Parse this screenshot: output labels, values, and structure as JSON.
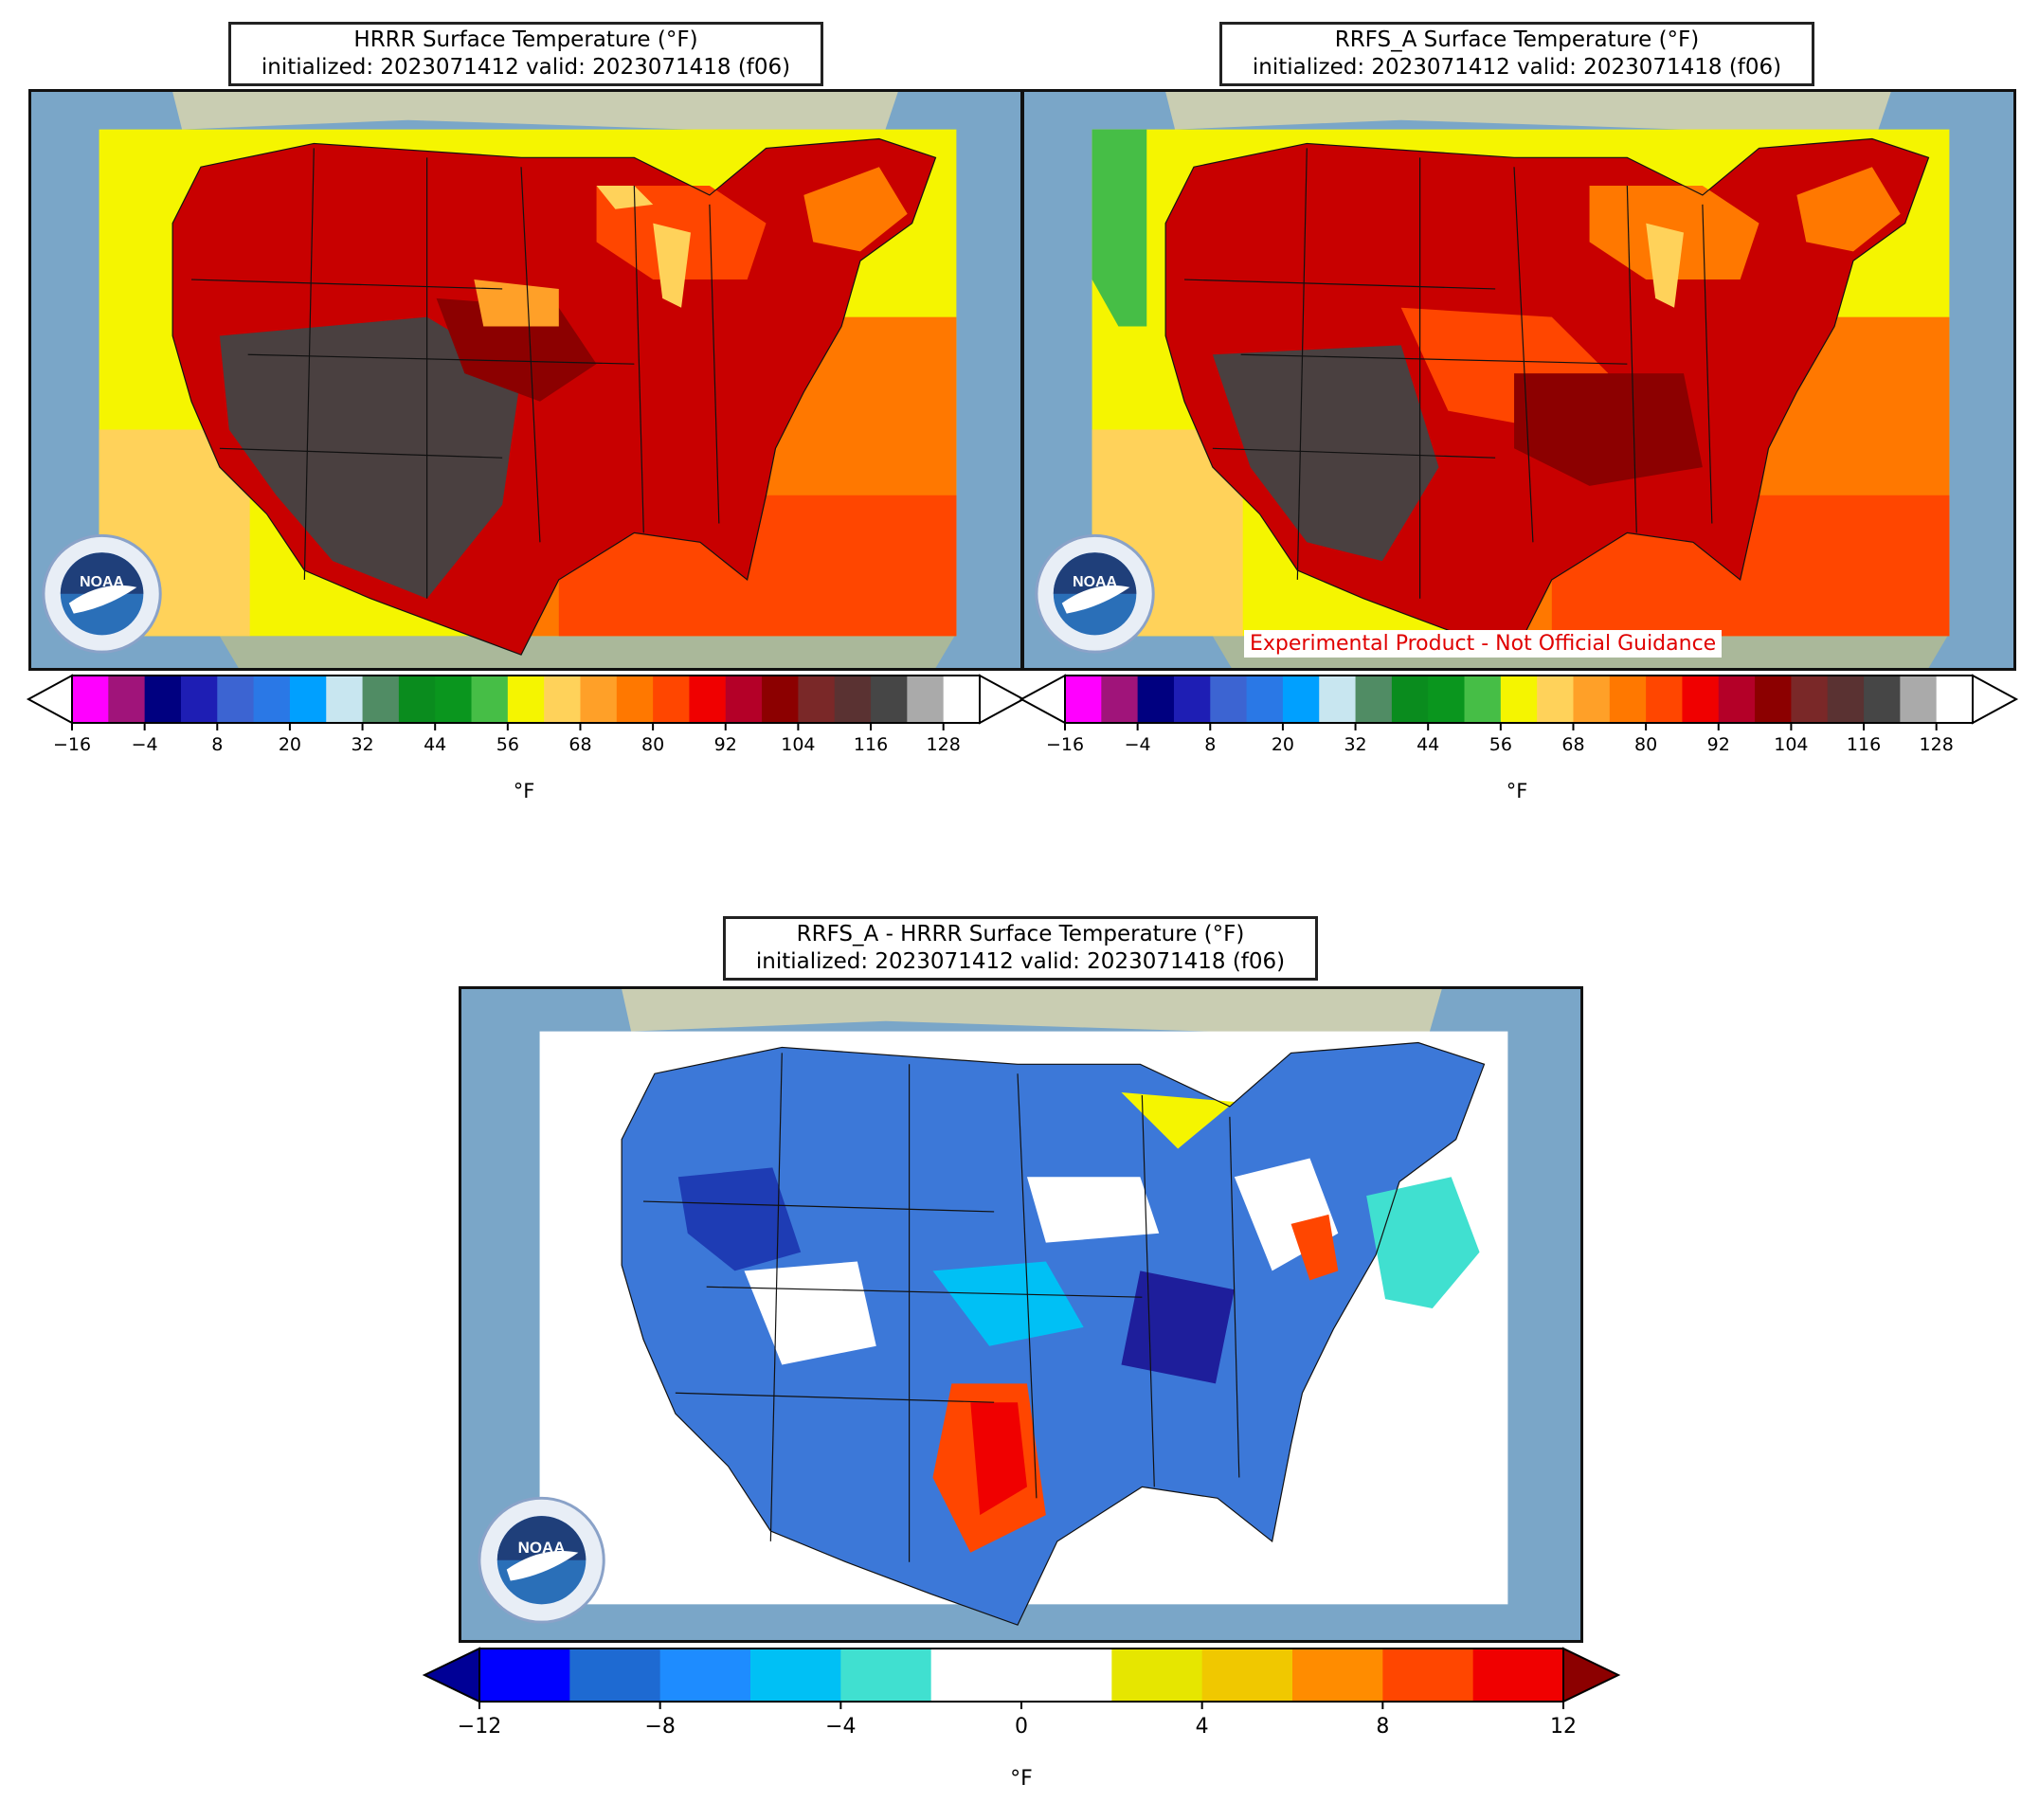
{
  "panels": [
    {
      "id": "hrrr",
      "title_line1": "HRRR Surface Temperature (°F)",
      "title_line2": "initialized: 2023071412 valid: 2023071418 (f06)"
    },
    {
      "id": "rrfs",
      "title_line1": "RRFS_A Surface Temperature (°F)",
      "title_line2": "initialized: 2023071412 valid: 2023071418 (f06)",
      "banner": "Experimental Product - Not Official Guidance"
    },
    {
      "id": "diff",
      "title_line1": "RRFS_A - HRRR Surface Temperature (°F)",
      "title_line2": "initialized: 2023071412 valid: 2023071418 (f06)"
    }
  ],
  "temp_colorbar": {
    "unit": "°F",
    "ticks": [
      "−16",
      "−4",
      "8",
      "20",
      "32",
      "44",
      "56",
      "68",
      "80",
      "92",
      "104",
      "116",
      "128"
    ],
    "colors": [
      "#ff00ff",
      "#a0147a",
      "#000080",
      "#1e1eb4",
      "#3c64d2",
      "#2a78e6",
      "#00a0ff",
      "#c8e6f0",
      "#508c64",
      "#0a8c1e",
      "#0a961e",
      "#46be46",
      "#f5f500",
      "#ffd25a",
      "#ffa028",
      "#ff7800",
      "#ff4600",
      "#f00000",
      "#b40028",
      "#8c0000",
      "#7a2828",
      "#5a3232",
      "#464646",
      "#aaaaaa",
      "#ffffff"
    ]
  },
  "diff_colorbar": {
    "unit": "°F",
    "ticks": [
      "−12",
      "−8",
      "−4",
      "0",
      "4",
      "8",
      "12"
    ],
    "colors": [
      "#0000ff",
      "#1e6ad2",
      "#1e8cff",
      "#00c0f5",
      "#40e0d0",
      "#ffffff",
      "#ffffff",
      "#e6e600",
      "#f0c800",
      "#ff8c00",
      "#ff4600",
      "#f00000"
    ],
    "under": "#000096",
    "over": "#8c0000"
  },
  "logo": {
    "text": "NOAA"
  },
  "colors": {
    "ocean": "#7aa6c8",
    "land_bg": "#c9cdb2",
    "pacific_warm": "#f5f500",
    "gulf_hot": "#ff4600",
    "atlantic_warm": "#ff7800"
  }
}
